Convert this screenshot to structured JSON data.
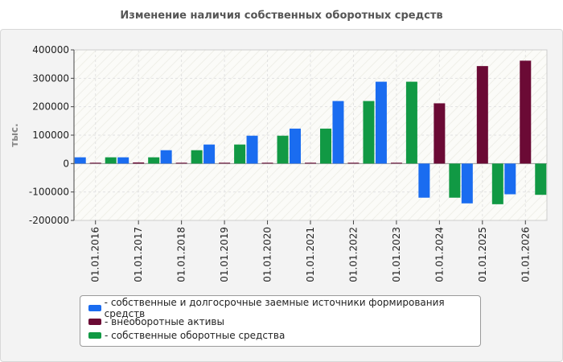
{
  "title": "Изменение наличия собственных оборотных средств",
  "chart_data": {
    "type": "bar",
    "ylabel": "тыс.",
    "ylim": [
      -200000,
      400000
    ],
    "yticks": [
      400000,
      300000,
      200000,
      100000,
      0,
      -100000,
      -200000
    ],
    "ytick_labels": [
      "400000",
      "300000",
      "200000",
      "100000",
      "0",
      "-100000",
      "-200000"
    ],
    "grid": true,
    "legend_position": "bottom",
    "categories": [
      "01.01.2016",
      "01.01.2017",
      "01.01.2018",
      "01.01.2019",
      "01.01.2020",
      "01.01.2021",
      "01.01.2022",
      "01.01.2023",
      "01.01.2024",
      "01.01.2025",
      "01.01.2026"
    ],
    "series": [
      {
        "name": "собственные и долгосрочные заемные источники формирования средств",
        "color": "#1a6cf0",
        "values": [
          22000,
          22000,
          47000,
          67000,
          98000,
          123000,
          220000,
          288000,
          -120000,
          -140000,
          -108000
        ]
      },
      {
        "name": "внеоборотные активы",
        "color": "#6b0a35",
        "values": [
          3000,
          4000,
          3000,
          3000,
          3000,
          3000,
          3000,
          3000,
          212000,
          343000,
          362000
        ]
      },
      {
        "name": "собственные оборотные средства",
        "color": "#119944",
        "values": [
          22000,
          22000,
          47000,
          67000,
          98000,
          123000,
          220000,
          288000,
          -120000,
          -143000,
          -110000
        ]
      }
    ]
  }
}
